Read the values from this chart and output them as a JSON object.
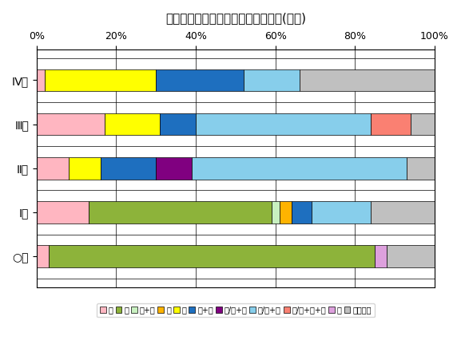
{
  "title": "治療前ステージ別・治療方法の割合(食道)",
  "categories": [
    "○期",
    "Ⅰ期",
    "Ⅱ期",
    "Ⅲ期",
    "Ⅳ期"
  ],
  "legend_labels": [
    "手",
    "内",
    "手+内",
    "放",
    "薬",
    "放+薬",
    "手/内+放",
    "手/内+薬",
    "手/内+放+薬",
    "他",
    "治療なし"
  ],
  "colors": [
    "#FFB6C1",
    "#8DB33A",
    "#C8F0C0",
    "#FFB300",
    "#FFFF00",
    "#1E6FBF",
    "#800080",
    "#87CEEB",
    "#FA8072",
    "#DDA0DD",
    "#C0C0C0"
  ],
  "data": [
    [
      3,
      82,
      0,
      0,
      0,
      0,
      0,
      0,
      0,
      3,
      12
    ],
    [
      13,
      46,
      2,
      3,
      0,
      5,
      0,
      15,
      0,
      0,
      16
    ],
    [
      8,
      0,
      0,
      0,
      8,
      14,
      9,
      54,
      0,
      0,
      7
    ],
    [
      17,
      0,
      0,
      0,
      14,
      9,
      0,
      44,
      10,
      0,
      6
    ],
    [
      2,
      0,
      0,
      0,
      28,
      22,
      0,
      14,
      0,
      0,
      34
    ]
  ],
  "bar_height": 0.5,
  "figsize": [
    5.77,
    4.51
  ],
  "dpi": 100,
  "title_fontsize": 11,
  "tick_fontsize": 9,
  "ytick_fontsize": 10,
  "legend_fontsize": 7,
  "xlim": [
    0,
    100
  ],
  "xticks": [
    0,
    20,
    40,
    60,
    80,
    100
  ],
  "xticklabels": [
    "0%",
    "20%",
    "40%",
    "60%",
    "80%",
    "100%"
  ]
}
